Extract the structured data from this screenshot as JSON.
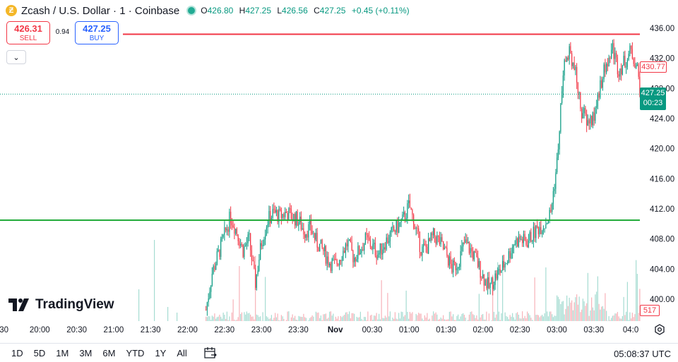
{
  "header": {
    "symbol_title": "Zcash / U.S. Dollar · 1 · Coinbase",
    "coin_glyph": "Ƶ",
    "open_label": "O",
    "open": "426.80",
    "high_label": "H",
    "high": "427.25",
    "low_label": "L",
    "low": "426.56",
    "close_label": "C",
    "close": "427.25",
    "change": "+0.45 (+0.11%)"
  },
  "trade": {
    "sell_price": "426.31",
    "sell_label": "SELL",
    "spread": "0.94",
    "buy_price": "427.25",
    "buy_label": "BUY",
    "collapse_glyph": "⌄"
  },
  "price_tags": {
    "red_line_price": "430.77",
    "last_price": "427.25",
    "countdown": "00:23",
    "volume": "517"
  },
  "branding": {
    "logo_text": "TradingView"
  },
  "bottom_bar": {
    "ranges": [
      "1D",
      "5D",
      "1M",
      "3M",
      "6M",
      "YTD",
      "1Y",
      "All"
    ],
    "clock": "05:08:37 UTC"
  },
  "colors": {
    "up": "#089981",
    "down": "#f23645",
    "resistance_line": "#f23645",
    "support_line": "#22ab3b",
    "volume_up": "#a6dcd2",
    "volume_down": "#f7b2b8"
  },
  "chart_data": {
    "type": "candlestick",
    "y_ticks": [
      "436.00",
      "432.00",
      "428.00",
      "424.00",
      "420.00",
      "416.00",
      "412.00",
      "408.00",
      "404.00",
      "400.00"
    ],
    "x_ticks": [
      ":30",
      "20:00",
      "20:30",
      "21:00",
      "21:30",
      "22:00",
      "22:30",
      "23:00",
      "23:30",
      "Nov",
      "00:30",
      "01:00",
      "01:30",
      "02:00",
      "02:30",
      "03:00",
      "03:30",
      "04:0"
    ],
    "ylim": [
      398.0,
      437.0
    ],
    "horizontal_lines": [
      {
        "price": 435.2,
        "color": "#f23645"
      },
      {
        "price": 410.5,
        "color": "#22ab3b"
      }
    ],
    "last_price_line": 427.25,
    "price_path": [
      [
        "22:15",
        398.6
      ],
      [
        "22:20",
        403.5
      ],
      [
        "22:25",
        406.0
      ],
      [
        "22:30",
        408.5
      ],
      [
        "22:35",
        411.0
      ],
      [
        "22:40",
        409.0
      ],
      [
        "22:45",
        406.5
      ],
      [
        "22:50",
        408.0
      ],
      [
        "22:55",
        402.0
      ],
      [
        "23:00",
        407.5
      ],
      [
        "23:05",
        410.5
      ],
      [
        "23:10",
        411.5
      ],
      [
        "23:15",
        411.0
      ],
      [
        "23:20",
        411.5
      ],
      [
        "23:25",
        411.0
      ],
      [
        "23:30",
        410.5
      ],
      [
        "23:35",
        409.0
      ],
      [
        "23:40",
        409.5
      ],
      [
        "23:45",
        407.5
      ],
      [
        "23:50",
        406.5
      ],
      [
        "23:55",
        405.0
      ],
      [
        "00:00",
        404.5
      ],
      [
        "00:05",
        406.0
      ],
      [
        "00:10",
        407.5
      ],
      [
        "00:15",
        405.5
      ],
      [
        "00:20",
        406.5
      ],
      [
        "00:25",
        408.0
      ],
      [
        "00:30",
        407.0
      ],
      [
        "00:35",
        406.0
      ],
      [
        "00:40",
        407.5
      ],
      [
        "00:45",
        408.5
      ],
      [
        "00:50",
        409.5
      ],
      [
        "00:55",
        410.5
      ],
      [
        "01:00",
        412.5
      ],
      [
        "01:05",
        409.5
      ],
      [
        "01:10",
        406.5
      ],
      [
        "01:15",
        407.0
      ],
      [
        "01:20",
        408.5
      ],
      [
        "01:25",
        407.5
      ],
      [
        "01:30",
        406.0
      ],
      [
        "01:35",
        404.0
      ],
      [
        "01:40",
        405.0
      ],
      [
        "01:45",
        407.5
      ],
      [
        "01:50",
        406.5
      ],
      [
        "01:55",
        405.0
      ],
      [
        "02:00",
        403.0
      ],
      [
        "02:05",
        401.5
      ],
      [
        "02:10",
        403.0
      ],
      [
        "02:15",
        404.0
      ],
      [
        "02:20",
        405.5
      ],
      [
        "02:25",
        407.5
      ],
      [
        "02:30",
        408.0
      ],
      [
        "02:35",
        407.5
      ],
      [
        "02:40",
        408.5
      ],
      [
        "02:45",
        409.5
      ],
      [
        "02:50",
        410.0
      ],
      [
        "02:55",
        411.5
      ],
      [
        "03:00",
        418.0
      ],
      [
        "03:05",
        430.0
      ],
      [
        "03:10",
        433.5
      ],
      [
        "03:15",
        430.0
      ],
      [
        "03:20",
        425.0
      ],
      [
        "03:25",
        423.5
      ],
      [
        "03:30",
        424.0
      ],
      [
        "03:35",
        428.5
      ],
      [
        "03:40",
        431.0
      ],
      [
        "03:45",
        433.5
      ],
      [
        "03:50",
        430.5
      ],
      [
        "03:55",
        431.5
      ],
      [
        "04:00",
        433.0
      ],
      [
        "04:05",
        431.0
      ],
      [
        "04:08",
        427.25
      ]
    ]
  }
}
